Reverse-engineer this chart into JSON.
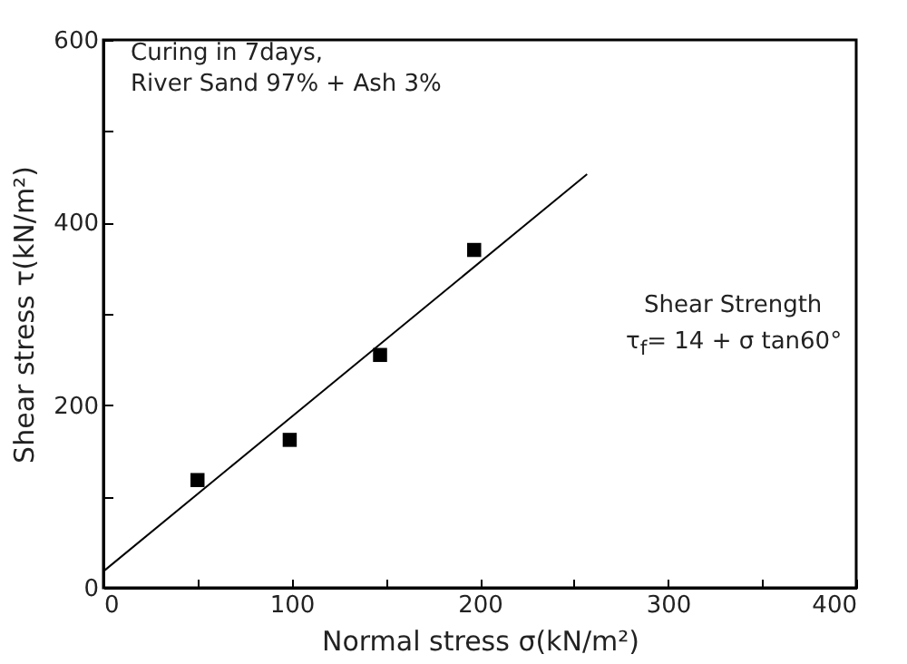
{
  "chart_data": {
    "type": "scatter",
    "xlabel": "Normal stress σ(kN/m²)",
    "ylabel": "Shear stress τ(kN/m²)",
    "annotations": [
      "Curing in 7days,",
      "River Sand 97% + Ash 3%",
      "Shear Strength",
      "τ$_{f}$= 14 + σ tan60°"
    ],
    "x": [
      50,
      99,
      147,
      197
    ],
    "series": [
      {
        "color": "#000000",
        "marker": "square",
        "values": [
          118,
          162,
          255,
          370
        ]
      },
      {
        "type": "line",
        "color": "#000000",
        "line_style": "solid",
        "x": [
          0,
          257
        ],
        "values": [
          18,
          453
        ]
      }
    ],
    "xlim": [
      0,
      400
    ],
    "ylim": [
      0,
      600
    ],
    "xticks": [
      0,
      {
        "value": 50,
        "label": null
      },
      100,
      {
        "value": 150,
        "label": null
      },
      200,
      {
        "value": 250,
        "label": null
      },
      300,
      {
        "value": 350,
        "label": null
      },
      400
    ],
    "yticks": [
      0,
      {
        "value": 100,
        "label": null
      },
      200,
      {
        "value": 300,
        "label": null
      },
      400,
      {
        "value": 500,
        "label": null
      },
      600
    ],
    "grid": false
  }
}
